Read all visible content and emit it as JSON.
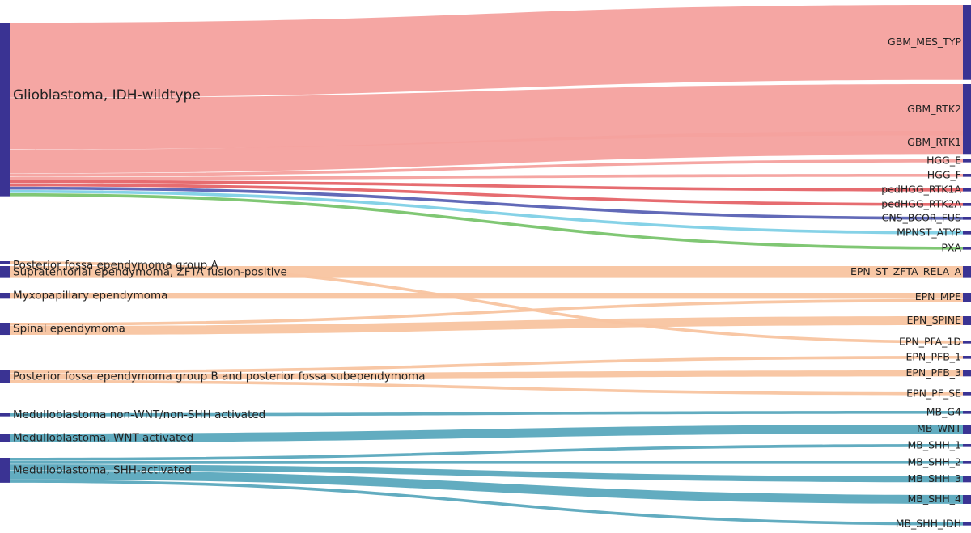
{
  "colors": {
    "node": "#3a3393",
    "gbm": "#f4a19e",
    "hgg_red": "#e56468",
    "blue": "#5a62b4",
    "cyan": "#7fd0e6",
    "green": "#79c46d",
    "epn": "#f8c4a0",
    "mb": "#5aa8bd"
  },
  "chart_data": {
    "type": "sankey",
    "sources": [
      {
        "id": "gbm",
        "label": "Glioblastoma, IDH-wildtype"
      },
      {
        "id": "st_epn",
        "label": "Supratentorial ependymoma, ZFTA fusion-positive"
      },
      {
        "id": "myx",
        "label": "Myxopapillary ependymoma"
      },
      {
        "id": "spinal",
        "label": "Spinal ependymoma"
      },
      {
        "id": "pfa",
        "label": "Posterior fossa ependymoma group A"
      },
      {
        "id": "pfb",
        "label": "Posterior fossa ependymoma group B and posterior fossa subependymoma"
      },
      {
        "id": "mb_nonwnt",
        "label": "Medulloblastoma non-WNT/non-SHH activated"
      },
      {
        "id": "mb_wnt",
        "label": "Medulloblastoma, WNT activated"
      },
      {
        "id": "mb_shh",
        "label": "Medulloblastoma, SHH-activated"
      }
    ],
    "targets": [
      {
        "id": "mes",
        "label": "GBM_MES_TYP"
      },
      {
        "id": "rtk2",
        "label": "GBM_RTK2"
      },
      {
        "id": "rtk1",
        "label": "GBM_RTK1"
      },
      {
        "id": "hgge",
        "label": "HGG_E"
      },
      {
        "id": "hggf",
        "label": "HGG_F"
      },
      {
        "id": "ped1a",
        "label": "pedHGG_RTK1A"
      },
      {
        "id": "ped2a",
        "label": "pedHGG_RTK2A"
      },
      {
        "id": "bcor",
        "label": "CNS_BCOR_FUS"
      },
      {
        "id": "mpnst",
        "label": "MPNST_ATYP"
      },
      {
        "id": "pxa",
        "label": "PXA"
      },
      {
        "id": "epn_st",
        "label": "EPN_ST_ZFTA_RELA_A"
      },
      {
        "id": "epn_mpe",
        "label": "EPN_MPE"
      },
      {
        "id": "epn_spine",
        "label": "EPN_SPINE"
      },
      {
        "id": "epn_pfa",
        "label": "EPN_PFA_1D"
      },
      {
        "id": "epn_pfb1",
        "label": "EPN_PFB_1"
      },
      {
        "id": "epn_pfb3",
        "label": "EPN_PFB_3"
      },
      {
        "id": "epn_pfse",
        "label": "EPN_PF_SE"
      },
      {
        "id": "mb_g4",
        "label": "MB_G4"
      },
      {
        "id": "mb_wnt_t",
        "label": "MB_WNT"
      },
      {
        "id": "shh1",
        "label": "MB_SHH_1"
      },
      {
        "id": "shh2",
        "label": "MB_SHH_2"
      },
      {
        "id": "shh3",
        "label": "MB_SHH_3"
      },
      {
        "id": "shh4",
        "label": "MB_SHH_4"
      },
      {
        "id": "shhidh",
        "label": "MB_SHH_IDH"
      }
    ],
    "links": [
      {
        "source": "gbm",
        "target": "mes",
        "value": 76,
        "color": "gbm"
      },
      {
        "source": "gbm",
        "target": "rtk2",
        "value": 52,
        "color": "gbm"
      },
      {
        "source": "gbm",
        "target": "rtk1",
        "value": 24,
        "color": "gbm"
      },
      {
        "source": "gbm",
        "target": "hgge",
        "value": 3,
        "color": "gbm"
      },
      {
        "source": "gbm",
        "target": "hggf",
        "value": 3,
        "color": "gbm"
      },
      {
        "source": "gbm",
        "target": "ped1a",
        "value": 3,
        "color": "hgg_red"
      },
      {
        "source": "gbm",
        "target": "ped2a",
        "value": 3,
        "color": "hgg_red"
      },
      {
        "source": "gbm",
        "target": "bcor",
        "value": 3,
        "color": "blue"
      },
      {
        "source": "gbm",
        "target": "mpnst",
        "value": 3,
        "color": "cyan"
      },
      {
        "source": "gbm",
        "target": "pxa",
        "value": 3,
        "color": "green"
      },
      {
        "source": "st_epn",
        "target": "epn_st",
        "value": 12,
        "color": "epn"
      },
      {
        "source": "myx",
        "target": "epn_mpe",
        "value": 6,
        "color": "epn"
      },
      {
        "source": "spinal",
        "target": "epn_mpe",
        "value": 3,
        "color": "epn"
      },
      {
        "source": "spinal",
        "target": "epn_spine",
        "value": 9,
        "color": "epn"
      },
      {
        "source": "pfa",
        "target": "epn_pfa",
        "value": 3,
        "color": "epn"
      },
      {
        "source": "pfb",
        "target": "epn_pfb1",
        "value": 3,
        "color": "epn"
      },
      {
        "source": "pfb",
        "target": "epn_pfb3",
        "value": 6,
        "color": "epn"
      },
      {
        "source": "pfb",
        "target": "epn_pfse",
        "value": 3,
        "color": "epn"
      },
      {
        "source": "mb_nonwnt",
        "target": "mb_g4",
        "value": 3,
        "color": "mb"
      },
      {
        "source": "mb_wnt",
        "target": "mb_wnt_t",
        "value": 9,
        "color": "mb"
      },
      {
        "source": "mb_shh",
        "target": "shh1",
        "value": 3,
        "color": "mb"
      },
      {
        "source": "mb_shh",
        "target": "shh2",
        "value": 3,
        "color": "mb"
      },
      {
        "source": "mb_shh",
        "target": "shh3",
        "value": 6,
        "color": "mb"
      },
      {
        "source": "mb_shh",
        "target": "shh4",
        "value": 9,
        "color": "mb"
      },
      {
        "source": "mb_shh",
        "target": "shhidh",
        "value": 3,
        "color": "mb"
      }
    ]
  }
}
